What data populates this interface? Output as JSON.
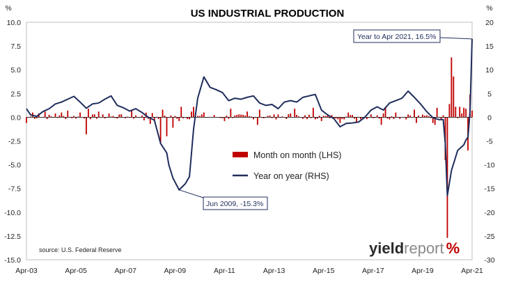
{
  "chart_data": {
    "type": "bar+line",
    "title": "US INDUSTRIAL PRODUCTION",
    "left_unit": "%",
    "right_unit": "%",
    "left_axis": {
      "min": -15,
      "max": 10,
      "step": 2.5,
      "tick_labels": [
        "10.0",
        "7.5",
        "5.0",
        "2.5",
        "0.0",
        "-2.5",
        "-5.0",
        "-7.5",
        "-10.0",
        "-12.5",
        "-15.0"
      ]
    },
    "right_axis": {
      "min": -30,
      "max": 20,
      "step": 5,
      "tick_labels": [
        "20",
        "15",
        "10",
        "5",
        "0",
        "-5",
        "-10",
        "-15",
        "-20",
        "-25",
        "-30"
      ]
    },
    "x_axis": {
      "start": "2003-04",
      "end": "2021-04",
      "tick_labels": [
        "Apr-03",
        "Apr-05",
        "Apr-07",
        "Apr-09",
        "Apr-11",
        "Apr-13",
        "Apr-15",
        "Apr-17",
        "Apr-19",
        "Apr-21"
      ]
    },
    "series": [
      {
        "name": "Month on month (LHS)",
        "type": "bar",
        "axis": "left",
        "color": "#c00000",
        "anchors": [
          [
            "2003-04",
            -0.6
          ],
          [
            "2003-07",
            0.5
          ],
          [
            "2003-10",
            0.4
          ],
          [
            "2004-01",
            0.6
          ],
          [
            "2004-06",
            0.4
          ],
          [
            "2004-09",
            0.5
          ],
          [
            "2004-12",
            0.7
          ],
          [
            "2005-06",
            0.5
          ],
          [
            "2005-09",
            -1.8
          ],
          [
            "2005-10",
            0.9
          ],
          [
            "2006-03",
            0.6
          ],
          [
            "2006-08",
            0.4
          ],
          [
            "2007-01",
            0.3
          ],
          [
            "2007-07",
            0.8
          ],
          [
            "2007-12",
            0.2
          ],
          [
            "2008-04",
            -0.7
          ],
          [
            "2008-06",
            -0.4
          ],
          [
            "2008-09",
            -2.8
          ],
          [
            "2008-10",
            0.8
          ],
          [
            "2008-12",
            -2.0
          ],
          [
            "2009-03",
            -1.1
          ],
          [
            "2009-06",
            -0.4
          ],
          [
            "2009-07",
            1.1
          ],
          [
            "2009-12",
            0.6
          ],
          [
            "2010-01",
            1.1
          ],
          [
            "2010-06",
            0.5
          ],
          [
            "2011-04",
            -0.4
          ],
          [
            "2011-07",
            0.9
          ],
          [
            "2012-03",
            0.6
          ],
          [
            "2012-08",
            -0.8
          ],
          [
            "2012-09",
            0.8
          ],
          [
            "2013-06",
            0.3
          ],
          [
            "2013-12",
            0.4
          ],
          [
            "2014-02",
            0.9
          ],
          [
            "2014-08",
            -0.2
          ],
          [
            "2014-11",
            1.0
          ],
          [
            "2015-03",
            -0.4
          ],
          [
            "2015-09",
            -0.2
          ],
          [
            "2015-12",
            -0.6
          ],
          [
            "2016-04",
            0.5
          ],
          [
            "2016-08",
            -0.5
          ],
          [
            "2017-03",
            0.3
          ],
          [
            "2017-08",
            -0.8
          ],
          [
            "2017-09",
            0.4
          ],
          [
            "2017-10",
            1.1
          ],
          [
            "2018-03",
            0.5
          ],
          [
            "2018-09",
            0.3
          ],
          [
            "2018-12",
            0.8
          ],
          [
            "2019-01",
            -0.6
          ],
          [
            "2019-06",
            0.2
          ],
          [
            "2019-09",
            -0.6
          ],
          [
            "2019-10",
            -0.8
          ],
          [
            "2019-11",
            1.0
          ],
          [
            "2020-01",
            -0.3
          ],
          [
            "2020-02",
            0.2
          ],
          [
            "2020-03",
            -4.5
          ],
          [
            "2020-04",
            -12.7
          ],
          [
            "2020-05",
            1.4
          ],
          [
            "2020-06",
            6.3
          ],
          [
            "2020-07",
            4.3
          ],
          [
            "2020-08",
            1.1
          ],
          [
            "2020-09",
            -0.1
          ],
          [
            "2020-10",
            1.1
          ],
          [
            "2020-11",
            0.4
          ],
          [
            "2020-12",
            1.0
          ],
          [
            "2021-01",
            0.9
          ],
          [
            "2021-02",
            -3.5
          ],
          [
            "2021-03",
            2.4
          ],
          [
            "2021-04",
            0.7
          ]
        ]
      },
      {
        "name": "Year on year (RHS)",
        "type": "line",
        "axis": "right",
        "color": "#1f2d5c",
        "anchors": [
          [
            "2003-04",
            1.8
          ],
          [
            "2003-06",
            0.5
          ],
          [
            "2003-09",
            0.2
          ],
          [
            "2003-12",
            1.2
          ],
          [
            "2004-03",
            1.8
          ],
          [
            "2004-06",
            2.8
          ],
          [
            "2004-09",
            3.2
          ],
          [
            "2004-12",
            3.8
          ],
          [
            "2005-03",
            4.4
          ],
          [
            "2005-06",
            3.2
          ],
          [
            "2005-09",
            1.9
          ],
          [
            "2005-12",
            2.8
          ],
          [
            "2006-03",
            3.0
          ],
          [
            "2006-06",
            3.8
          ],
          [
            "2006-09",
            4.5
          ],
          [
            "2006-12",
            2.5
          ],
          [
            "2007-03",
            2.0
          ],
          [
            "2007-06",
            1.3
          ],
          [
            "2007-09",
            1.8
          ],
          [
            "2007-12",
            1.0
          ],
          [
            "2008-03",
            0.0
          ],
          [
            "2008-06",
            -0.6
          ],
          [
            "2008-09",
            -5.5
          ],
          [
            "2008-12",
            -7.5
          ],
          [
            "2009-01",
            -10.0
          ],
          [
            "2009-03",
            -12.8
          ],
          [
            "2009-06",
            -15.3
          ],
          [
            "2009-09",
            -14.0
          ],
          [
            "2009-11",
            -12.5
          ],
          [
            "2010-01",
            -2.5
          ],
          [
            "2010-03",
            4.0
          ],
          [
            "2010-06",
            8.5
          ],
          [
            "2010-09",
            6.3
          ],
          [
            "2010-12",
            5.8
          ],
          [
            "2011-03",
            5.2
          ],
          [
            "2011-06",
            3.5
          ],
          [
            "2011-09",
            4.0
          ],
          [
            "2011-12",
            3.8
          ],
          [
            "2012-03",
            4.2
          ],
          [
            "2012-06",
            4.5
          ],
          [
            "2012-09",
            3.0
          ],
          [
            "2012-12",
            2.5
          ],
          [
            "2013-03",
            2.7
          ],
          [
            "2013-06",
            1.8
          ],
          [
            "2013-09",
            3.2
          ],
          [
            "2013-12",
            3.5
          ],
          [
            "2014-03",
            3.2
          ],
          [
            "2014-06",
            4.2
          ],
          [
            "2014-09",
            4.5
          ],
          [
            "2014-12",
            4.8
          ],
          [
            "2015-03",
            1.5
          ],
          [
            "2015-06",
            0.5
          ],
          [
            "2015-09",
            -0.3
          ],
          [
            "2015-12",
            -2.0
          ],
          [
            "2016-03",
            -1.3
          ],
          [
            "2016-06",
            -1.2
          ],
          [
            "2016-09",
            -1.0
          ],
          [
            "2016-12",
            0.0
          ],
          [
            "2017-03",
            1.5
          ],
          [
            "2017-06",
            2.2
          ],
          [
            "2017-09",
            1.5
          ],
          [
            "2017-12",
            3.0
          ],
          [
            "2018-03",
            3.5
          ],
          [
            "2018-06",
            4.0
          ],
          [
            "2018-09",
            5.5
          ],
          [
            "2018-12",
            4.2
          ],
          [
            "2019-03",
            2.8
          ],
          [
            "2019-06",
            1.2
          ],
          [
            "2019-09",
            -0.1
          ],
          [
            "2019-12",
            -0.5
          ],
          [
            "2020-02",
            -0.5
          ],
          [
            "2020-03",
            -5.5
          ],
          [
            "2020-04",
            -16.5
          ],
          [
            "2020-06",
            -11.2
          ],
          [
            "2020-09",
            -7.0
          ],
          [
            "2020-12",
            -5.8
          ],
          [
            "2021-01",
            -4.8
          ],
          [
            "2021-02",
            -4.2
          ],
          [
            "2021-03",
            1.2
          ],
          [
            "2021-04",
            16.5
          ]
        ]
      }
    ],
    "annotations": [
      {
        "text": "Year to Apr 2021, 16.5%",
        "x": "2021-04",
        "y": 16.5,
        "axis": "right"
      },
      {
        "text": "Jun 2009, -15.3%",
        "x": "2009-06",
        "y": -15.3,
        "axis": "right"
      }
    ],
    "source": "source: U.S. Federal Reserve",
    "brand": {
      "part1": "yield",
      "part2": "report",
      "part3": "%"
    },
    "grid": false,
    "legend_position": "center"
  }
}
